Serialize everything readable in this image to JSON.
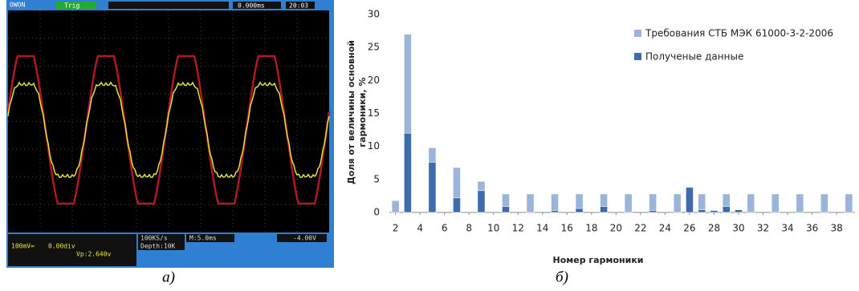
{
  "oscilloscope": {
    "brand": "OWON",
    "trig": "Trig",
    "time": "0.000ms",
    "clock": "20:03",
    "rate": "100KS/s",
    "depth": "Depth:10K",
    "timebase": "M:5.0ms",
    "trig_level": "-4.00V",
    "ch1": "100mV=",
    "ch1_pos": "0.00div",
    "vp": "Vp:2.640v"
  },
  "captions": [
    "а)",
    "б)"
  ],
  "chart_data": {
    "type": "bar",
    "ylabel": [
      "Доля от величины основной",
      "гармоники, %"
    ],
    "xlabel": "Номер гармоники",
    "x": [
      2,
      3,
      4,
      5,
      6,
      7,
      8,
      9,
      10,
      11,
      12,
      13,
      14,
      15,
      16,
      17,
      18,
      19,
      20,
      21,
      22,
      23,
      24,
      25,
      26,
      27,
      28,
      29,
      30,
      31,
      32,
      33,
      34,
      35,
      36,
      37,
      38,
      39
    ],
    "series": [
      {
        "name": "Требования СТБ МЭК 61000-3-2-2006",
        "color": "#9ab4da",
        "values": [
          1.8,
          27,
          null,
          9.8,
          null,
          6.8,
          null,
          4.7,
          null,
          2.8,
          null,
          2.8,
          null,
          2.8,
          null,
          2.8,
          null,
          2.8,
          null,
          2.8,
          null,
          2.8,
          null,
          2.8,
          null,
          2.8,
          null,
          2.8,
          null,
          2.8,
          null,
          2.8,
          null,
          2.8,
          null,
          2.8,
          null,
          2.8
        ]
      },
      {
        "name": "Полученые данные",
        "color": "#3e6bab",
        "values": [
          null,
          12,
          null,
          7.6,
          null,
          2.2,
          null,
          3.3,
          null,
          0.9,
          null,
          null,
          null,
          0.3,
          null,
          0.6,
          null,
          0.9,
          null,
          null,
          null,
          0.3,
          null,
          null,
          3.8,
          0.4,
          0.3,
          0.9,
          0.4,
          null,
          null,
          null,
          null,
          null,
          null,
          null,
          null,
          null
        ]
      }
    ],
    "xlim": [
      1.5,
      39.5
    ],
    "xticks": [
      2,
      4,
      6,
      8,
      10,
      12,
      14,
      16,
      18,
      20,
      22,
      24,
      26,
      28,
      30,
      32,
      34,
      36,
      38
    ],
    "ylim": [
      0,
      30
    ],
    "yticks": [
      0,
      5,
      10,
      15,
      20,
      25,
      30
    ],
    "grid": false,
    "legend": "upper right"
  }
}
